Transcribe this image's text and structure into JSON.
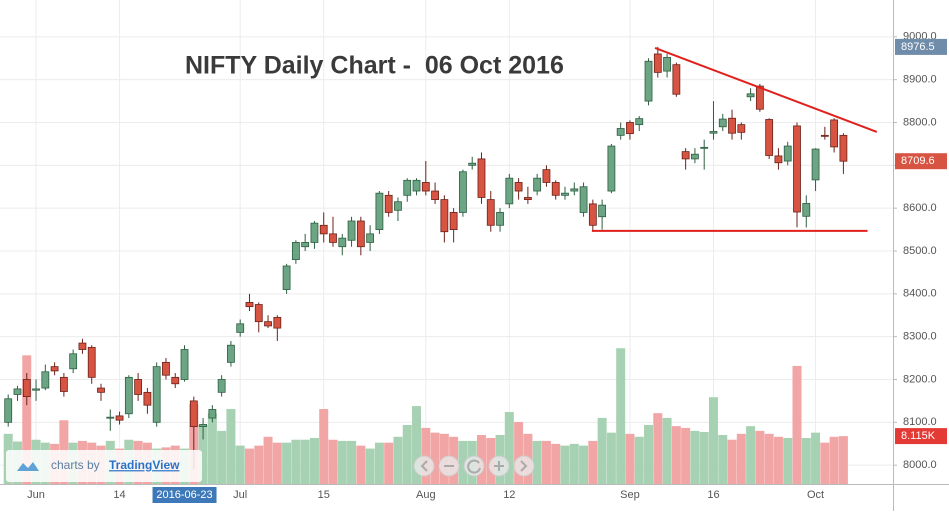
{
  "chart_data": {
    "type": "candlestick",
    "title": "NIFTY Daily Chart -  06 Oct 2016",
    "categories": [
      null,
      null,
      null,
      "Jun",
      null,
      null,
      null,
      null,
      null,
      null,
      null,
      null,
      "14",
      null,
      null,
      null,
      null,
      null,
      null,
      null,
      null,
      null,
      null,
      null,
      null,
      "Jul",
      null,
      null,
      null,
      null,
      null,
      null,
      null,
      null,
      "15",
      null,
      null,
      null,
      null,
      null,
      null,
      null,
      null,
      null,
      null,
      "Aug",
      null,
      null,
      null,
      null,
      null,
      null,
      null,
      null,
      "12",
      null,
      null,
      null,
      null,
      null,
      null,
      null,
      null,
      null,
      null,
      null,
      null,
      "Sep",
      null,
      null,
      null,
      null,
      null,
      null,
      null,
      null,
      "16",
      null,
      null,
      null,
      null,
      null,
      null,
      null,
      null,
      null,
      null,
      "Oct",
      null,
      null,
      null
    ],
    "open": [
      8100,
      8165,
      8200,
      8175,
      8180,
      8230,
      8205,
      8225,
      8285,
      8275,
      8180,
      8110,
      8115,
      8120,
      8200,
      8170,
      8100,
      8240,
      8205,
      8200,
      8150,
      8090,
      8110,
      8170,
      8240,
      8310,
      8380,
      8375,
      8335,
      8345,
      8410,
      8480,
      8510,
      8520,
      8560,
      8540,
      8510,
      8525,
      8570,
      8520,
      8550,
      8630,
      8595,
      8630,
      8640,
      8660,
      8640,
      8620,
      8590,
      8590,
      8700,
      8715,
      8620,
      8560,
      8610,
      8660,
      8625,
      8640,
      8690,
      8660,
      8630,
      8640,
      8590,
      8610,
      8580,
      8640,
      8770,
      8800,
      8795,
      8850,
      8960,
      8920,
      8935,
      8732,
      8715,
      8740,
      8775,
      8790,
      8810,
      8795,
      8860,
      8885,
      8807,
      8722,
      8710,
      8792,
      8581,
      8666,
      8770,
      8806,
      8770
    ],
    "high": [
      8165,
      8185,
      8215,
      8200,
      8235,
      8240,
      8215,
      8270,
      8295,
      8280,
      8190,
      8130,
      8125,
      8210,
      8215,
      8180,
      8240,
      8250,
      8215,
      8280,
      8160,
      8110,
      8140,
      8210,
      8290,
      8340,
      8400,
      8380,
      8350,
      8350,
      8470,
      8525,
      8540,
      8570,
      8590,
      8580,
      8540,
      8580,
      8580,
      8560,
      8640,
      8640,
      8625,
      8670,
      8670,
      8710,
      8660,
      8630,
      8600,
      8690,
      8720,
      8730,
      8640,
      8600,
      8680,
      8670,
      8650,
      8680,
      8700,
      8665,
      8650,
      8660,
      8660,
      8620,
      8620,
      8750,
      8800,
      8805,
      8815,
      8950,
      8976.5,
      8960,
      8940,
      8740,
      8740,
      8760,
      8850,
      8820,
      8830,
      8800,
      8880,
      8890,
      8810,
      8740,
      8755,
      8800,
      8630,
      8740,
      8790,
      8810,
      8775
    ],
    "low": [
      8090,
      8150,
      8140,
      8150,
      8175,
      8210,
      8160,
      8215,
      8260,
      8190,
      8150,
      8080,
      8095,
      8110,
      8150,
      8120,
      8090,
      8200,
      8180,
      8195,
      7990,
      8060,
      8100,
      8160,
      8230,
      8300,
      8360,
      8310,
      8320,
      8290,
      8400,
      8470,
      8500,
      8505,
      8520,
      8510,
      8490,
      8510,
      8490,
      8500,
      8540,
      8580,
      8570,
      8615,
      8630,
      8630,
      8610,
      8520,
      8520,
      8580,
      8690,
      8610,
      8545,
      8545,
      8600,
      8620,
      8610,
      8630,
      8650,
      8620,
      8620,
      8630,
      8580,
      8545,
      8550,
      8635,
      8760,
      8760,
      8780,
      8840,
      8905,
      8905,
      8860,
      8690,
      8705,
      8690,
      8760,
      8780,
      8760,
      8760,
      8850,
      8825,
      8715,
      8690,
      8700,
      8555,
      8555,
      8640,
      8760,
      8730,
      8680
    ],
    "close": [
      8155,
      8178,
      8160,
      8178,
      8218,
      8220,
      8172,
      8260,
      8270,
      8205,
      8170,
      8112,
      8105,
      8205,
      8165,
      8140,
      8230,
      8210,
      8190,
      8270,
      8090,
      8095,
      8130,
      8200,
      8280,
      8330,
      8370,
      8335,
      8325,
      8320,
      8465,
      8520,
      8520,
      8565,
      8540,
      8520,
      8530,
      8570,
      8510,
      8540,
      8635,
      8590,
      8615,
      8665,
      8665,
      8640,
      8620,
      8545,
      8550,
      8685,
      8705,
      8625,
      8560,
      8590,
      8670,
      8640,
      8620,
      8670,
      8660,
      8630,
      8635,
      8645,
      8650,
      8560,
      8607,
      8745,
      8786,
      8774,
      8809,
      8943,
      8917,
      8952,
      8866,
      8715,
      8726,
      8742,
      8779,
      8808,
      8775,
      8777,
      8867,
      8831,
      8723,
      8706,
      8745,
      8591,
      8611,
      8738,
      8769,
      8743,
      8709.6
    ],
    "up_color": "#6ba583",
    "down_color": "#d75442",
    "volume": {
      "values": [
        8.5,
        7.2,
        21.8,
        7.5,
        7.0,
        6.8,
        10.8,
        7.0,
        7.3,
        7.0,
        6.5,
        7.3,
        6.0,
        7.5,
        7.3,
        7.0,
        6.0,
        6.2,
        6.5,
        6.0,
        13.5,
        10.0,
        12.0,
        9.0,
        12.7,
        6.5,
        6.0,
        6.5,
        8.0,
        7.0,
        7.0,
        7.5,
        7.5,
        7.8,
        12.7,
        7.5,
        7.3,
        7.3,
        6.5,
        6.0,
        7.0,
        7.0,
        8.0,
        10.0,
        13.2,
        9.5,
        8.7,
        8.5,
        8.0,
        7.3,
        7.3,
        8.3,
        7.8,
        8.3,
        12.2,
        10.5,
        8.5,
        7.3,
        7.3,
        6.8,
        6.5,
        6.8,
        6.5,
        7.3,
        11.2,
        8.7,
        23.0,
        8.5,
        8.0,
        10.0,
        12.0,
        11.2,
        9.8,
        9.5,
        9.0,
        8.8,
        14.7,
        8.3,
        7.5,
        8.5,
        9.8,
        9.0,
        8.5,
        8.0,
        7.8,
        20.0,
        7.8,
        8.7,
        7.0,
        8.0,
        8.115
      ],
      "last_label": "8.115K",
      "up_color": "#a6d1b2",
      "down_color": "#f2a5a5",
      "vlim": [
        0,
        82
      ]
    },
    "ylim": [
      7956,
      9086
    ],
    "yticks": [
      {
        "value": 8000,
        "label": "8000.0"
      },
      {
        "value": 8100,
        "label": "8100.0"
      },
      {
        "value": 8200,
        "label": "8200.0"
      },
      {
        "value": 8300,
        "label": "8300.0"
      },
      {
        "value": 8400,
        "label": "8400.0"
      },
      {
        "value": 8500,
        "label": "8500.0"
      },
      {
        "value": 8600,
        "label": "8600.0"
      },
      {
        "value": 8700,
        "label": "8700.0"
      },
      {
        "value": 8800,
        "label": "8800.0"
      },
      {
        "value": 8900,
        "label": "8900.0"
      },
      {
        "value": 9000,
        "label": "9000.0"
      }
    ],
    "grid": true,
    "high_marker": {
      "index": 70,
      "value": 8976.5
    },
    "crosshair": {
      "index": 19,
      "label": "2016-06-23"
    },
    "trendline_color": "#e0201c",
    "trendlines": [
      {
        "x": [
          69.7,
          93.6
        ],
        "y": [
          8974,
          8778
        ]
      },
      {
        "x": [
          62.9,
          92.6
        ],
        "y": [
          8547,
          8547
        ]
      }
    ],
    "watermark": {
      "prefix": "charts by",
      "brand": "TradingView"
    }
  }
}
